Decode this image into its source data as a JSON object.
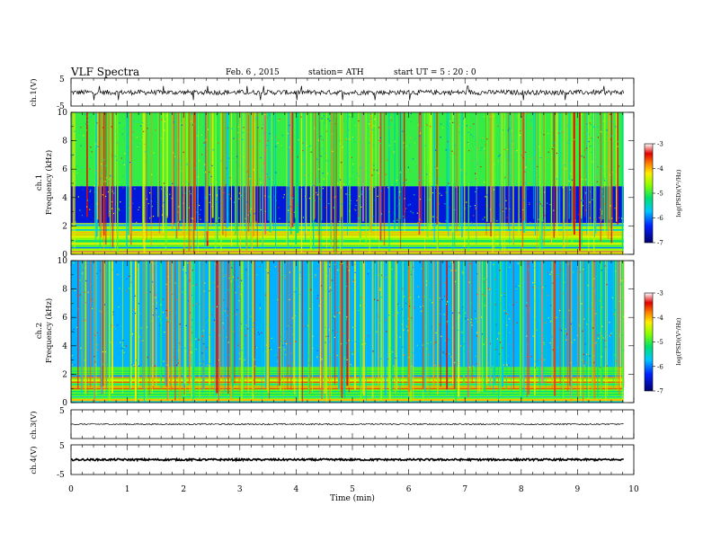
{
  "header": {
    "title": "VLF  Spectra",
    "date": "Feb. 6  , 2015",
    "station": "station= ATH",
    "start": "start  UT  =   5  : 20 : 0"
  },
  "chart_data": [
    {
      "type": "line",
      "id": "ch1-waveform",
      "ylabel": "ch.1(V)",
      "ylim": [
        -5,
        5
      ],
      "yticks": [
        "5",
        "-5"
      ],
      "xlim": [
        0,
        10
      ],
      "x_extent_min": [
        0,
        9.82
      ],
      "approx_amplitude_V": [
        -1.2,
        1.0
      ]
    },
    {
      "type": "heatmap",
      "id": "ch1-spectrogram",
      "ylabel_channel": "ch.1",
      "ylabel": "Frequency  (kHz)",
      "ylim": [
        0,
        10
      ],
      "yticks": [
        "0",
        "2",
        "4",
        "6",
        "8",
        "10"
      ],
      "xlim": [
        0,
        10
      ],
      "x_extent_min": [
        0,
        9.82
      ],
      "colorbar": {
        "label": "log(PSD)(V²/Hz)",
        "range": [
          -7,
          -3
        ],
        "ticks": [
          "-3",
          "-4",
          "-5",
          "-6",
          "-7"
        ]
      },
      "approx_profile": [
        {
          "band_kHz": [
            0,
            2.2
          ],
          "log_psd": -4.5,
          "note": "strong horizontal lines"
        },
        {
          "band_kHz": [
            2.2,
            4.8
          ],
          "log_psd": -6.5
        },
        {
          "band_kHz": [
            4.8,
            10
          ],
          "log_psd": -5.0,
          "note": "vertical impulsive streaks"
        }
      ]
    },
    {
      "type": "heatmap",
      "id": "ch2-spectrogram",
      "ylabel_channel": "ch.2",
      "ylabel": "Frequency  (kHz)",
      "ylim": [
        0,
        10
      ],
      "yticks": [
        "0",
        "2",
        "4",
        "6",
        "8",
        "10"
      ],
      "xlim": [
        0,
        10
      ],
      "x_extent_min": [
        0,
        9.82
      ],
      "colorbar": {
        "label": "log(PSD)(V²/Hz)",
        "range": [
          -7,
          -3
        ],
        "ticks": [
          "-3",
          "-4",
          "-5",
          "-6",
          "-7"
        ]
      },
      "approx_profile": [
        {
          "band_kHz": [
            0,
            2.5
          ],
          "log_psd": -4.8,
          "note": "strong horizontal lines"
        },
        {
          "band_kHz": [
            2.5,
            10
          ],
          "log_psd": -5.8,
          "note": "vertical impulsive streaks"
        }
      ]
    },
    {
      "type": "line",
      "id": "ch3-waveform",
      "ylabel": "ch.3(V)",
      "ylim": [
        -5,
        5
      ],
      "yticks": [
        "5"
      ],
      "xlim": [
        0,
        10
      ],
      "x_extent_min": [
        0,
        9.82
      ],
      "approx_amplitude_V": [
        -0.3,
        0.3
      ]
    },
    {
      "type": "line",
      "id": "ch4-waveform",
      "ylabel": "ch.4(V)",
      "ylim": [
        -5,
        5
      ],
      "yticks": [
        "5",
        "-5"
      ],
      "xlim": [
        0,
        10
      ],
      "x_extent_min": [
        0,
        9.82
      ],
      "approx_amplitude_V": [
        -0.4,
        0.4
      ]
    }
  ],
  "xaxis": {
    "label": "Time  (min)",
    "ticks": [
      "0",
      "1",
      "2",
      "3",
      "4",
      "5",
      "6",
      "7",
      "8",
      "9",
      "10"
    ]
  }
}
